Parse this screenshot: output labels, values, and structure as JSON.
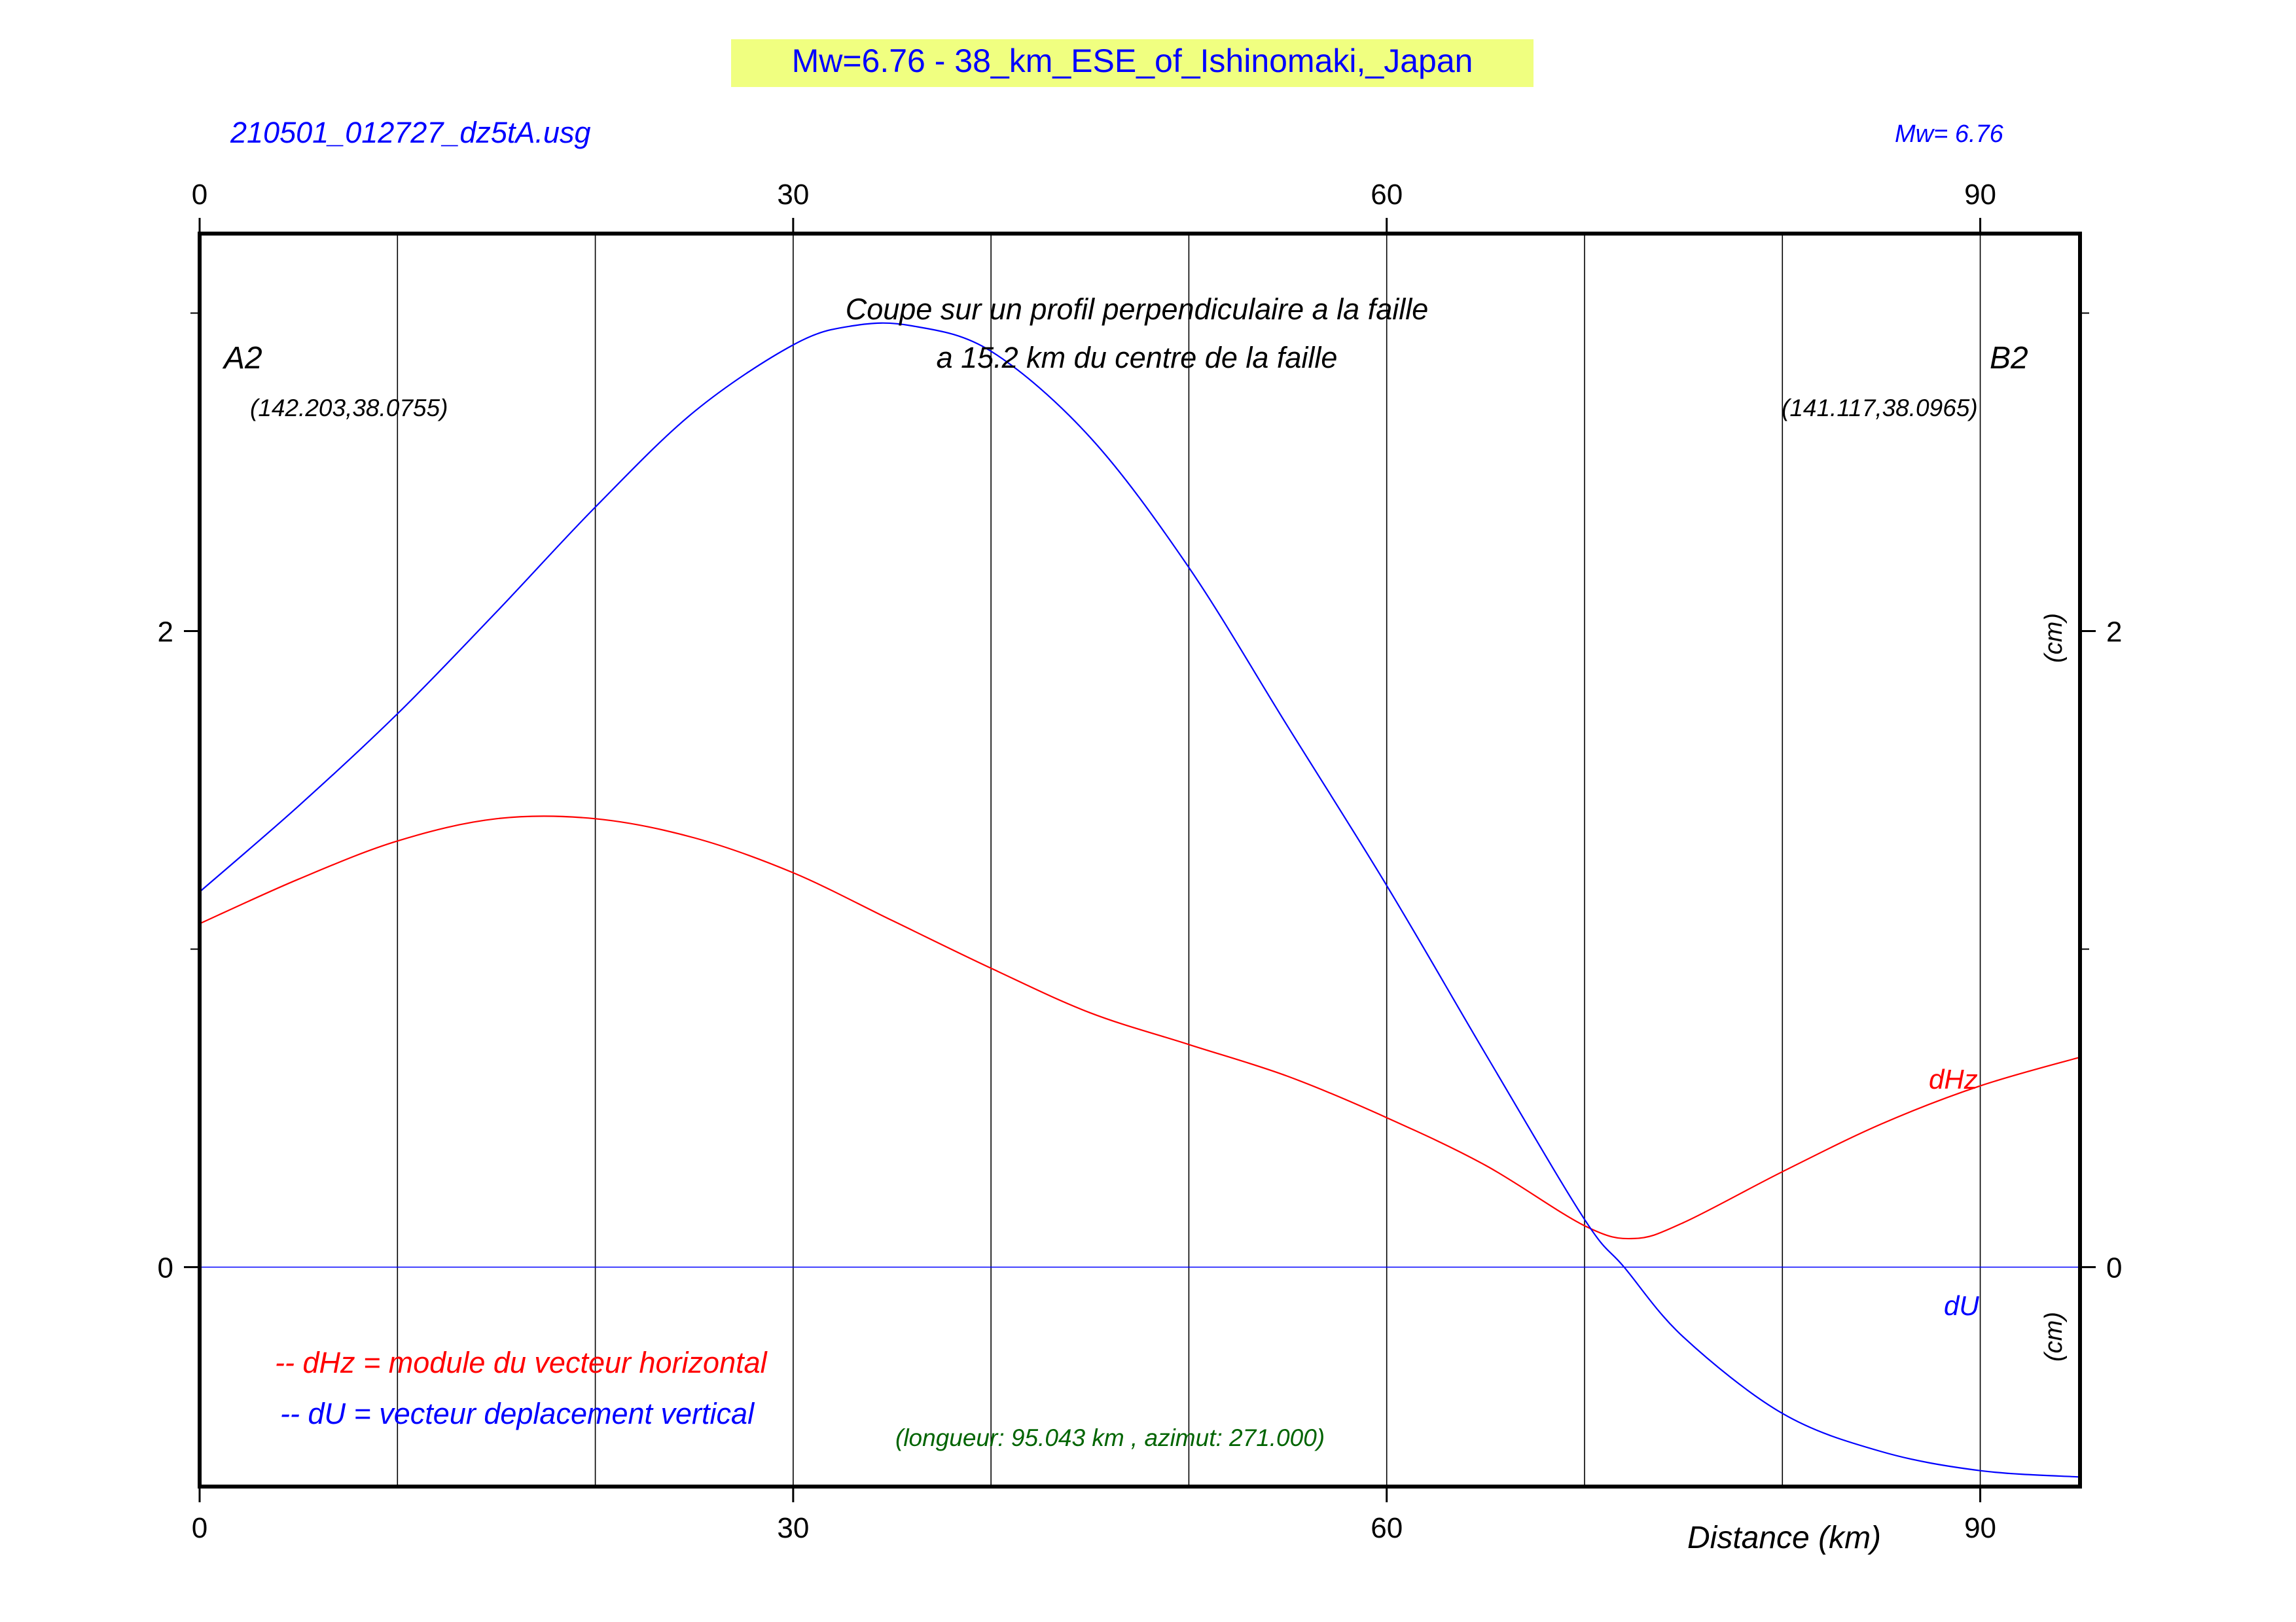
{
  "header": {
    "title": "Mw=6.76 - 38_km_ESE_of_Ishinomaki,_Japan",
    "title_bg": "#f0ff80",
    "file_label": "210501_012727_dz5tA.usg",
    "mw_label": "Mw= 6.76"
  },
  "chart_data": {
    "type": "line",
    "xlabel": "Distance (km)",
    "ylabel_right": "(cm)",
    "xlim": [
      0,
      95.043
    ],
    "ylim": [
      -0.69,
      3.25
    ],
    "x_ticks": [
      0,
      30,
      60,
      90
    ],
    "x_tick_labels": [
      "0",
      "30",
      "60",
      "90"
    ],
    "y_ticks": [
      0,
      2
    ],
    "y_tick_labels": [
      "0",
      "2"
    ],
    "y_minor_ticks": [
      1,
      3
    ],
    "vertical_gridlines": [
      10,
      20,
      30,
      40,
      50,
      60,
      70,
      80,
      90
    ],
    "zero_line": 0,
    "subtitle_line1": "Coupe sur un profil perpendiculaire a la faille",
    "subtitle_line2": "a 15.2 km du centre de la faille",
    "endpoint_a": {
      "name": "A2",
      "coords": "(142.203,38.0755)"
    },
    "endpoint_b": {
      "name": "B2",
      "coords": "(141.117,38.0965)"
    },
    "profile_info": "(longueur: 95.043 km , azimut: 271.000)",
    "legend": [
      {
        "text": "-- dHz = module du vecteur horizontal",
        "color": "#ff0000"
      },
      {
        "text": "-- dU =  vecteur deplacement vertical",
        "color": "#0000ff"
      }
    ],
    "series": [
      {
        "name": "dHz",
        "color": "#ff0000",
        "x": [
          0,
          5,
          10,
          15,
          20,
          25,
          30,
          35,
          40,
          45,
          50,
          55,
          60,
          65,
          70,
          72.5,
          75,
          80,
          85,
          90,
          95.043
        ],
        "y": [
          1.08,
          1.22,
          1.34,
          1.41,
          1.41,
          1.35,
          1.24,
          1.09,
          0.94,
          0.8,
          0.7,
          0.6,
          0.47,
          0.32,
          0.13,
          0.09,
          0.14,
          0.3,
          0.45,
          0.57,
          0.66
        ]
      },
      {
        "name": "dU",
        "color": "#0000ff",
        "x": [
          0,
          5,
          10,
          15,
          20,
          25,
          30,
          33,
          36,
          40,
          45,
          50,
          55,
          60,
          65,
          70,
          72,
          75,
          80,
          85,
          90,
          95.043
        ],
        "y": [
          1.18,
          1.45,
          1.74,
          2.06,
          2.39,
          2.69,
          2.9,
          2.96,
          2.96,
          2.88,
          2.61,
          2.2,
          1.7,
          1.2,
          0.67,
          0.15,
          0.0,
          -0.22,
          -0.46,
          -0.58,
          -0.64,
          -0.66
        ]
      }
    ]
  }
}
